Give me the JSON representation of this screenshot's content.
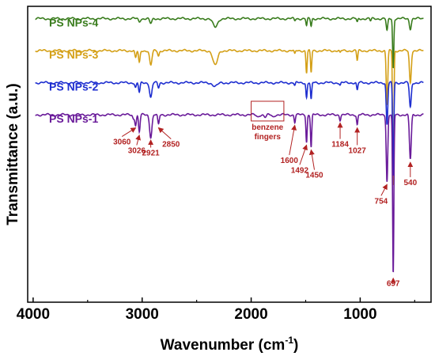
{
  "chart_data": {
    "type": "line",
    "xlabel": "Wavenumber (cm",
    "xlabel_sup": "-1",
    "xlabel_end": ")",
    "ylabel": "Transmittance (a.u.)",
    "xlim": [
      4050,
      350
    ],
    "x_reversed": true,
    "x_ticks": [
      4000,
      3000,
      2000,
      1000
    ],
    "x_tick_labels": [
      "4000",
      "3000",
      "2000",
      "1000"
    ],
    "y_ticks_shown": false,
    "grid": false,
    "legend": "inline labels at left of each trace",
    "series": [
      {
        "name": "PS NPs-4",
        "color": "#3a7d1e",
        "baseline": 0.95,
        "dips": [
          [
            3026,
            0.012,
            12
          ],
          [
            2921,
            0.02,
            15
          ],
          [
            2330,
            0.035,
            30
          ],
          [
            1600,
            0.008,
            8
          ],
          [
            1492,
            0.03,
            8
          ],
          [
            1450,
            0.03,
            8
          ],
          [
            1027,
            0.015,
            8
          ],
          [
            905,
            0.01,
            8
          ],
          [
            754,
            0.05,
            10
          ],
          [
            697,
            0.2,
            8
          ],
          [
            540,
            0.04,
            12
          ]
        ]
      },
      {
        "name": "PS NPs-3",
        "color": "#d4a017",
        "baseline": 0.82,
        "dips": [
          [
            3060,
            0.03,
            10
          ],
          [
            3026,
            0.05,
            10
          ],
          [
            2921,
            0.06,
            15
          ],
          [
            2850,
            0.02,
            10
          ],
          [
            2330,
            0.06,
            30
          ],
          [
            1600,
            0.015,
            8
          ],
          [
            1492,
            0.09,
            8
          ],
          [
            1450,
            0.09,
            8
          ],
          [
            1184,
            0.01,
            8
          ],
          [
            1027,
            0.04,
            8
          ],
          [
            754,
            0.22,
            10
          ],
          [
            697,
            0.55,
            8
          ],
          [
            540,
            0.13,
            12
          ]
        ]
      },
      {
        "name": "PS NPs-2",
        "color": "#1f2fd0",
        "baseline": 0.69,
        "dips": [
          [
            3060,
            0.02,
            10
          ],
          [
            3026,
            0.04,
            10
          ],
          [
            2921,
            0.06,
            15
          ],
          [
            2850,
            0.02,
            10
          ],
          [
            2330,
            0.015,
            30
          ],
          [
            1600,
            0.012,
            8
          ],
          [
            1492,
            0.06,
            8
          ],
          [
            1450,
            0.07,
            8
          ],
          [
            1184,
            0.01,
            8
          ],
          [
            1027,
            0.03,
            8
          ],
          [
            754,
            0.17,
            10
          ],
          [
            697,
            0.38,
            8
          ],
          [
            540,
            0.1,
            12
          ]
        ]
      },
      {
        "name": "PS NPs-1",
        "color": "#6a1b9a",
        "baseline": 0.56,
        "dips": [
          [
            3080,
            0.015,
            10
          ],
          [
            3060,
            0.04,
            10
          ],
          [
            3026,
            0.07,
            10
          ],
          [
            2921,
            0.09,
            15
          ],
          [
            2850,
            0.04,
            10
          ],
          [
            1940,
            0.008,
            15
          ],
          [
            1870,
            0.01,
            15
          ],
          [
            1800,
            0.008,
            15
          ],
          [
            1600,
            0.03,
            8
          ],
          [
            1492,
            0.11,
            8
          ],
          [
            1450,
            0.13,
            8
          ],
          [
            1184,
            0.02,
            8
          ],
          [
            1027,
            0.04,
            8
          ],
          [
            754,
            0.27,
            10
          ],
          [
            697,
            0.65,
            8
          ],
          [
            540,
            0.18,
            12
          ]
        ]
      }
    ],
    "annotations": {
      "peaks": [
        {
          "label": "3060",
          "x": 3060,
          "text_x": 3185,
          "text_y": 0.44
        },
        {
          "label": "3026",
          "x": 3026,
          "text_x": 3050,
          "text_y": 0.405
        },
        {
          "label": "2921",
          "x": 2921,
          "text_x": 2921,
          "text_y": 0.395
        },
        {
          "label": "2850",
          "x": 2850,
          "text_x": 2735,
          "text_y": 0.43
        },
        {
          "label": "1600",
          "x": 1600,
          "text_x": 1650,
          "text_y": 0.365
        },
        {
          "label": "1492",
          "x": 1492,
          "text_x": 1555,
          "text_y": 0.325
        },
        {
          "label": "1450",
          "x": 1450,
          "text_x": 1420,
          "text_y": 0.305
        },
        {
          "label": "1184",
          "x": 1184,
          "text_x": 1184,
          "text_y": 0.43
        },
        {
          "label": "1027",
          "x": 1027,
          "text_x": 1027,
          "text_y": 0.405
        },
        {
          "label": "754",
          "x": 754,
          "text_x": 808,
          "text_y": 0.2
        },
        {
          "label": "697",
          "x": 697,
          "text_x": 697,
          "text_y": -0.135
        },
        {
          "label": "540",
          "x": 540,
          "text_x": 540,
          "text_y": 0.275
        }
      ],
      "box": {
        "label_lines": [
          "benzene",
          "fingers"
        ],
        "x_from": 2000,
        "x_to": 1700
      }
    }
  }
}
